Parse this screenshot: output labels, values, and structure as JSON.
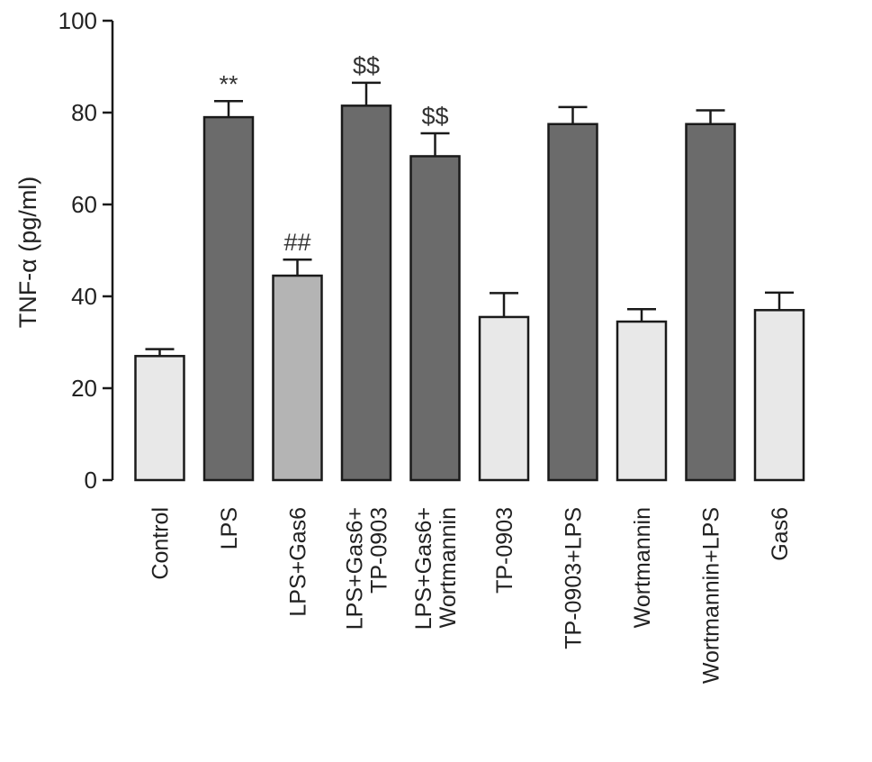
{
  "chart_data": {
    "type": "bar",
    "title": "",
    "xlabel": "",
    "ylabel": "TNF-α (pg/ml)",
    "ylim": [
      0,
      100
    ],
    "yticks": [
      0,
      20,
      40,
      60,
      80,
      100
    ],
    "grid": false,
    "legend": "none",
    "categories": [
      [
        "Control"
      ],
      [
        "LPS"
      ],
      [
        "LPS+Gas6"
      ],
      [
        "LPS+Gas6+",
        "TP-0903"
      ],
      [
        "LPS+Gas6+",
        "Wortmannin"
      ],
      [
        "TP-0903"
      ],
      [
        "TP-0903+LPS"
      ],
      [
        "Wortmannin"
      ],
      [
        "Wortmannin+LPS"
      ],
      [
        "Gas6"
      ]
    ],
    "values": [
      27,
      79,
      44.5,
      81.5,
      70.5,
      35.5,
      77.5,
      34.5,
      77.5,
      37
    ],
    "errors": [
      1.5,
      3.5,
      3.5,
      5,
      5,
      5.2,
      3.7,
      2.7,
      3,
      3.8
    ],
    "annotations": [
      "",
      "**",
      "##",
      "$$",
      "$$",
      "",
      "",
      "",
      "",
      ""
    ],
    "colors": {
      "light": "#e8e8e8",
      "dark": "#6b6b6b",
      "medium": "#b4b4b4"
    },
    "bar_shades": [
      "light",
      "dark",
      "medium",
      "dark",
      "dark",
      "light",
      "dark",
      "light",
      "dark",
      "light"
    ]
  }
}
